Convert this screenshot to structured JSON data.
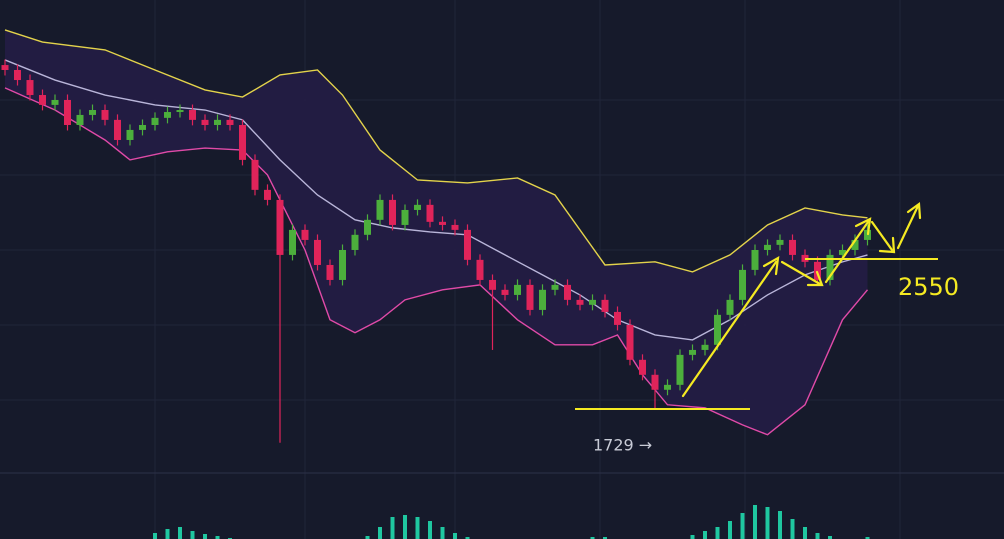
{
  "chart_data": [
    {
      "type": "candlestick",
      "ylim": [
        1395,
        3967
      ],
      "open": [
        3611,
        3584,
        3529,
        3447,
        3393,
        3420,
        3283,
        3338,
        3365,
        3311,
        3201,
        3256,
        3283,
        3322,
        3354,
        3365,
        3311,
        3283,
        3311,
        3283,
        3092,
        2928,
        2873,
        2572,
        2709,
        2654,
        2517,
        2435,
        2599,
        2682,
        2764,
        2873,
        2736,
        2818,
        2846,
        2753,
        2736,
        2709,
        2545,
        2435,
        2381,
        2353,
        2408,
        2271,
        2381,
        2408,
        2326,
        2299,
        2326,
        2260,
        2189,
        1998,
        1916,
        1834,
        1861,
        2025,
        2052,
        2080,
        2244,
        2326,
        2490,
        2599,
        2627,
        2654,
        2572,
        2534,
        2435,
        2572,
        2599,
        2654
      ],
      "high": [
        3641,
        3614,
        3559,
        3477,
        3450,
        3450,
        3368,
        3395,
        3395,
        3341,
        3286,
        3313,
        3352,
        3384,
        3395,
        3395,
        3341,
        3341,
        3341,
        3313,
        3122,
        2958,
        2903,
        2739,
        2739,
        2684,
        2547,
        2629,
        2712,
        2794,
        2903,
        2903,
        2848,
        2876,
        2876,
        2783,
        2766,
        2739,
        2575,
        2465,
        2411,
        2438,
        2438,
        2411,
        2438,
        2438,
        2356,
        2356,
        2356,
        2290,
        2219,
        2028,
        1946,
        1891,
        2055,
        2082,
        2110,
        2274,
        2356,
        2520,
        2629,
        2657,
        2684,
        2684,
        2602,
        2564,
        2602,
        2629,
        2684,
        2739
      ],
      "low": [
        3554,
        3499,
        3417,
        3363,
        3363,
        3253,
        3253,
        3308,
        3281,
        3171,
        3171,
        3226,
        3253,
        3292,
        3324,
        3281,
        3253,
        3253,
        3253,
        3062,
        2898,
        2843,
        1544,
        2542,
        2624,
        2487,
        2405,
        2405,
        2569,
        2652,
        2734,
        2706,
        2706,
        2788,
        2723,
        2706,
        2679,
        2515,
        2405,
        2052,
        2323,
        2323,
        2241,
        2241,
        2351,
        2296,
        2269,
        2269,
        2230,
        2159,
        1968,
        1886,
        1729,
        1804,
        1831,
        1995,
        2022,
        2050,
        2214,
        2296,
        2460,
        2569,
        2597,
        2542,
        2504,
        2405,
        2405,
        2542,
        2569,
        2624
      ],
      "close": [
        3584,
        3529,
        3447,
        3393,
        3420,
        3283,
        3338,
        3365,
        3311,
        3201,
        3256,
        3283,
        3322,
        3354,
        3365,
        3311,
        3283,
        3311,
        3283,
        3092,
        2928,
        2873,
        2572,
        2709,
        2654,
        2517,
        2435,
        2599,
        2682,
        2764,
        2873,
        2736,
        2818,
        2846,
        2753,
        2736,
        2709,
        2545,
        2435,
        2381,
        2353,
        2408,
        2271,
        2381,
        2408,
        2326,
        2299,
        2326,
        2260,
        2189,
        1998,
        1916,
        1834,
        1861,
        2025,
        2052,
        2080,
        2244,
        2326,
        2490,
        2599,
        2627,
        2654,
        2572,
        2534,
        2435,
        2572,
        2599,
        2654,
        2709
      ],
      "up_color": "#4caf3c",
      "down_color": "#e0245a",
      "band_fill": "#241d45",
      "bands": [
        {
          "color": "#e3d34b",
          "x": [
            0,
            3,
            8,
            12,
            16,
            19,
            22,
            25,
            27,
            30,
            33,
            37,
            41,
            44,
            48,
            52,
            55,
            58,
            61,
            64,
            67,
            69
          ],
          "values": [
            3803,
            3737,
            3694,
            3584,
            3475,
            3436,
            3557,
            3584,
            3447,
            3146,
            2982,
            2966,
            2993,
            2900,
            2517,
            2534,
            2479,
            2572,
            2736,
            2829,
            2791,
            2775
          ]
        },
        {
          "color": "#b9b5d9",
          "x": [
            0,
            4,
            8,
            12,
            16,
            19,
            22,
            25,
            28,
            31,
            34,
            37,
            40,
            43,
            46,
            49,
            52,
            55,
            58,
            61,
            64,
            67,
            69
          ],
          "values": [
            3639,
            3529,
            3447,
            3393,
            3365,
            3311,
            3092,
            2900,
            2764,
            2720,
            2698,
            2682,
            2572,
            2463,
            2353,
            2217,
            2134,
            2107,
            2217,
            2353,
            2463,
            2534,
            2572
          ]
        },
        {
          "color": "#e04aa8",
          "x": [
            0,
            4,
            8,
            10,
            13,
            16,
            19,
            21,
            24,
            26,
            28,
            30,
            32,
            35,
            38,
            41,
            44,
            47,
            49,
            51,
            53,
            56,
            59,
            61,
            64,
            67,
            69
          ],
          "values": [
            3486,
            3365,
            3201,
            3092,
            3136,
            3157,
            3146,
            3010,
            2599,
            2217,
            2146,
            2217,
            2326,
            2381,
            2408,
            2217,
            2080,
            2080,
            2134,
            1916,
            1752,
            1735,
            1642,
            1588,
            1752,
            2217,
            2381
          ]
        }
      ],
      "levels": [
        {
          "value": 2550,
          "label": "2550",
          "color": "#f5ea22"
        },
        {
          "value": 1729,
          "label": "1729 →",
          "color": "#f5ea22"
        }
      ]
    },
    {
      "type": "bar",
      "color": "#1fc7a0",
      "ylim": [
        0,
        40
      ],
      "values": [
        null,
        null,
        null,
        null,
        null,
        null,
        null,
        null,
        null,
        null,
        null,
        null,
        6,
        10,
        12,
        8,
        5,
        3,
        1,
        null,
        null,
        null,
        null,
        null,
        null,
        null,
        null,
        null,
        null,
        3,
        12,
        22,
        24,
        22,
        18,
        12,
        6,
        2,
        null,
        null,
        null,
        null,
        null,
        null,
        null,
        null,
        null,
        2,
        2,
        null,
        null,
        null,
        null,
        null,
        null,
        4,
        8,
        12,
        18,
        26,
        34,
        32,
        28,
        20,
        12,
        6,
        3,
        null,
        null,
        2
      ]
    }
  ]
}
